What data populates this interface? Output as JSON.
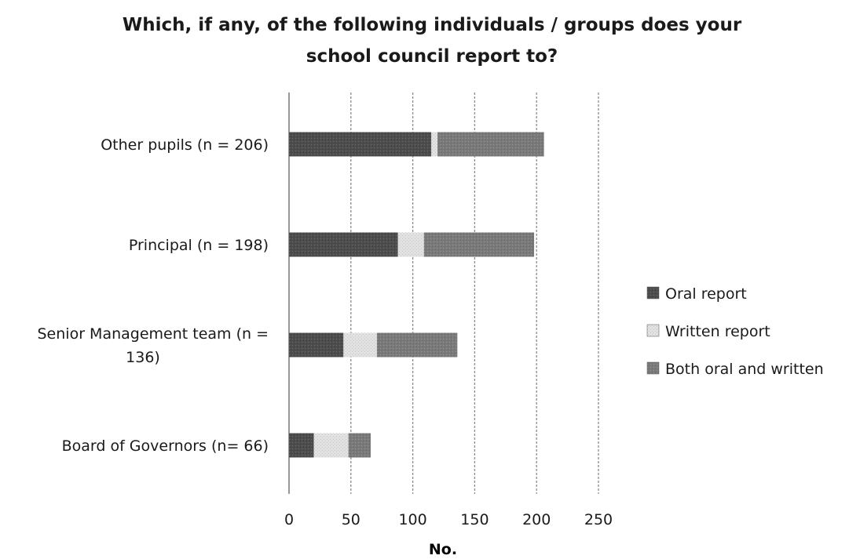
{
  "chart_data": {
    "type": "bar",
    "orientation": "horizontal",
    "stacked": true,
    "title": "Which, if any, of the following individuals / groups does your school council report to?",
    "title_lines": [
      "Which, if any, of the following individuals  / groups does your",
      "school council report to?"
    ],
    "categories": [
      "Other pupils (n = 206)",
      "Principal (n = 198)",
      "Senior Management team (n = 136)",
      "Board of Governors (n= 66)"
    ],
    "category_lines": [
      [
        "Other pupils (n = 206)"
      ],
      [
        "Principal (n = 198)"
      ],
      [
        "Senior Management team (n =",
        "136)"
      ],
      [
        "Board of Governors (n= 66)"
      ]
    ],
    "series": [
      {
        "name": "Oral report",
        "values": [
          115,
          88,
          44,
          20
        ],
        "color": "#4d4d4d"
      },
      {
        "name": "Written report",
        "values": [
          5,
          21,
          27,
          28
        ],
        "color": "#dedede"
      },
      {
        "name": "Both oral and written",
        "values": [
          86,
          89,
          65,
          18
        ],
        "color": "#7a7a7a"
      }
    ],
    "xlabel": "No.",
    "ylabel": "",
    "xlim": [
      0,
      250
    ],
    "xticks": [
      0,
      50,
      100,
      150,
      200,
      250
    ],
    "grid": true,
    "legend_position": "right"
  }
}
